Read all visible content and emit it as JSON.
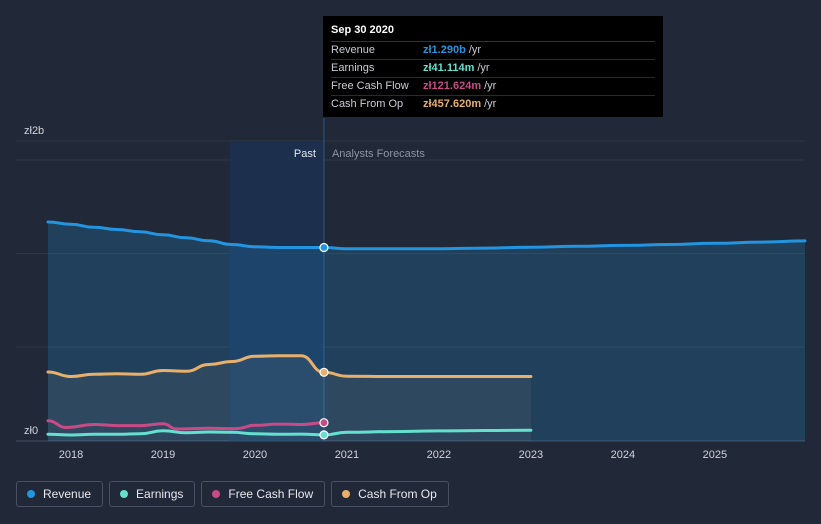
{
  "chart_data": {
    "type": "line",
    "currency_prefix": "zł",
    "y_axis": {
      "ticks": [
        {
          "value": 0,
          "label": "zł0"
        },
        {
          "value": 2,
          "label": "zł2b"
        }
      ],
      "unit": "billion"
    },
    "x_axis": {
      "ticks": [
        "2018",
        "2019",
        "2020",
        "2021",
        "2022",
        "2023",
        "2024",
        "2025"
      ]
    },
    "xlim": [
      2017.75,
      2025.98
    ],
    "ylim": [
      0,
      2.0
    ],
    "divider": {
      "x": 2020.75,
      "past_label": "Past",
      "forecast_label": "Analysts Forecasts"
    },
    "series": [
      {
        "name": "Revenue",
        "color": "#2394df",
        "fill": true,
        "points": [
          [
            2017.75,
            1.46
          ],
          [
            2018.0,
            1.445
          ],
          [
            2018.25,
            1.425
          ],
          [
            2018.5,
            1.41
          ],
          [
            2018.75,
            1.395
          ],
          [
            2019.0,
            1.375
          ],
          [
            2019.25,
            1.355
          ],
          [
            2019.5,
            1.335
          ],
          [
            2019.75,
            1.31
          ],
          [
            2020.0,
            1.295
          ],
          [
            2020.25,
            1.29
          ],
          [
            2020.5,
            1.29
          ],
          [
            2020.75,
            1.29
          ]
        ],
        "forecast": [
          [
            2020.75,
            1.29
          ],
          [
            2021.0,
            1.282
          ],
          [
            2021.5,
            1.282
          ],
          [
            2022.0,
            1.282
          ],
          [
            2022.5,
            1.286
          ],
          [
            2023.0,
            1.292
          ],
          [
            2023.5,
            1.298
          ],
          [
            2024.0,
            1.304
          ],
          [
            2024.5,
            1.31
          ],
          [
            2025.0,
            1.318
          ],
          [
            2025.5,
            1.326
          ],
          [
            2025.98,
            1.334
          ]
        ]
      },
      {
        "name": "Earnings",
        "color": "#65e0cf",
        "fill": false,
        "points": [
          [
            2017.75,
            0.045
          ],
          [
            2018.0,
            0.04
          ],
          [
            2018.25,
            0.045
          ],
          [
            2018.5,
            0.045
          ],
          [
            2018.75,
            0.048
          ],
          [
            2019.0,
            0.068
          ],
          [
            2019.25,
            0.055
          ],
          [
            2019.5,
            0.06
          ],
          [
            2019.75,
            0.058
          ],
          [
            2020.0,
            0.048
          ],
          [
            2020.25,
            0.045
          ],
          [
            2020.5,
            0.046
          ],
          [
            2020.75,
            0.041
          ]
        ],
        "forecast": [
          [
            2020.75,
            0.041
          ],
          [
            2021.0,
            0.058
          ],
          [
            2021.5,
            0.063
          ],
          [
            2022.0,
            0.067
          ],
          [
            2022.5,
            0.07
          ],
          [
            2023.0,
            0.072
          ]
        ]
      },
      {
        "name": "Free Cash Flow",
        "color": "#c84a86",
        "fill": false,
        "points": [
          [
            2017.75,
            0.135
          ],
          [
            2017.95,
            0.09
          ],
          [
            2018.25,
            0.11
          ],
          [
            2018.5,
            0.103
          ],
          [
            2018.75,
            0.103
          ],
          [
            2019.0,
            0.115
          ],
          [
            2019.15,
            0.08
          ],
          [
            2019.5,
            0.085
          ],
          [
            2019.8,
            0.083
          ],
          [
            2020.0,
            0.105
          ],
          [
            2020.25,
            0.113
          ],
          [
            2020.5,
            0.11
          ],
          [
            2020.75,
            0.122
          ]
        ],
        "forecast": []
      },
      {
        "name": "Cash From Op",
        "color": "#e8b06a",
        "fill": false,
        "points": [
          [
            2017.75,
            0.46
          ],
          [
            2018.0,
            0.43
          ],
          [
            2018.25,
            0.445
          ],
          [
            2018.5,
            0.448
          ],
          [
            2018.75,
            0.445
          ],
          [
            2019.0,
            0.47
          ],
          [
            2019.25,
            0.465
          ],
          [
            2019.5,
            0.51
          ],
          [
            2019.75,
            0.53
          ],
          [
            2020.0,
            0.565
          ],
          [
            2020.25,
            0.568
          ],
          [
            2020.5,
            0.568
          ],
          [
            2020.75,
            0.458
          ]
        ],
        "forecast": [
          [
            2020.75,
            0.458
          ],
          [
            2021.0,
            0.432
          ],
          [
            2021.5,
            0.43
          ],
          [
            2022.0,
            0.43
          ],
          [
            2022.5,
            0.43
          ],
          [
            2023.0,
            0.43
          ]
        ]
      }
    ],
    "tooltip": {
      "date": "Sep 30 2020",
      "rows": [
        {
          "name": "Revenue",
          "value": "zł1.290b",
          "unit": "/yr",
          "color": "#2394df"
        },
        {
          "name": "Earnings",
          "value": "zł41.114m",
          "unit": "/yr",
          "color": "#65e0cf"
        },
        {
          "name": "Free Cash Flow",
          "value": "zł121.624m",
          "unit": "/yr",
          "color": "#c84a86"
        },
        {
          "name": "Cash From Op",
          "value": "zł457.620m",
          "unit": "/yr",
          "color": "#e8b06a"
        }
      ]
    }
  },
  "legend": [
    {
      "label": "Revenue",
      "color": "#2394df"
    },
    {
      "label": "Earnings",
      "color": "#65e0cf"
    },
    {
      "label": "Free Cash Flow",
      "color": "#c84a86"
    },
    {
      "label": "Cash From Op",
      "color": "#e8b06a"
    }
  ]
}
